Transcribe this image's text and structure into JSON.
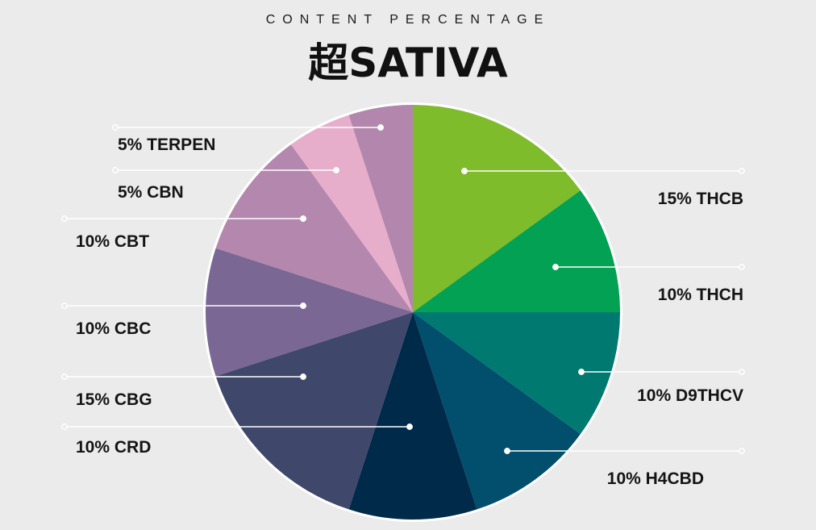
{
  "header": {
    "subtitle": "CONTENT PERCENTAGE",
    "title": "超SATIVA"
  },
  "chart_data": {
    "type": "pie",
    "title": "超SATIVA",
    "subtitle": "CONTENT PERCENTAGE",
    "start": "12 o'clock",
    "direction": "clockwise",
    "slices": [
      {
        "label": "15% THCB",
        "value": 15,
        "color": "#7fbc2b",
        "side": "right"
      },
      {
        "label": "10% THCH",
        "value": 10,
        "color": "#03a153",
        "side": "right"
      },
      {
        "label": "10% D9THCV",
        "value": 10,
        "color": "#007a70",
        "side": "right"
      },
      {
        "label": "10%  H4CBD",
        "value": 10,
        "color": "#024e6d",
        "side": "right"
      },
      {
        "label": "10% CRD",
        "value": 10,
        "color": "#002a4a",
        "side": "left"
      },
      {
        "label": "15% CBG",
        "value": 15,
        "color": "#3f476b",
        "side": "left"
      },
      {
        "label": "10% CBC",
        "value": 10,
        "color": "#7a6793",
        "side": "left"
      },
      {
        "label": "10% CBT",
        "value": 10,
        "color": "#b487ae",
        "side": "left"
      },
      {
        "label": "5% CBN",
        "value": 5,
        "color": "#e7aecb",
        "side": "left"
      },
      {
        "label": "5% TERPEN",
        "value": 5,
        "color": "#b386ad",
        "side": "left"
      }
    ]
  }
}
